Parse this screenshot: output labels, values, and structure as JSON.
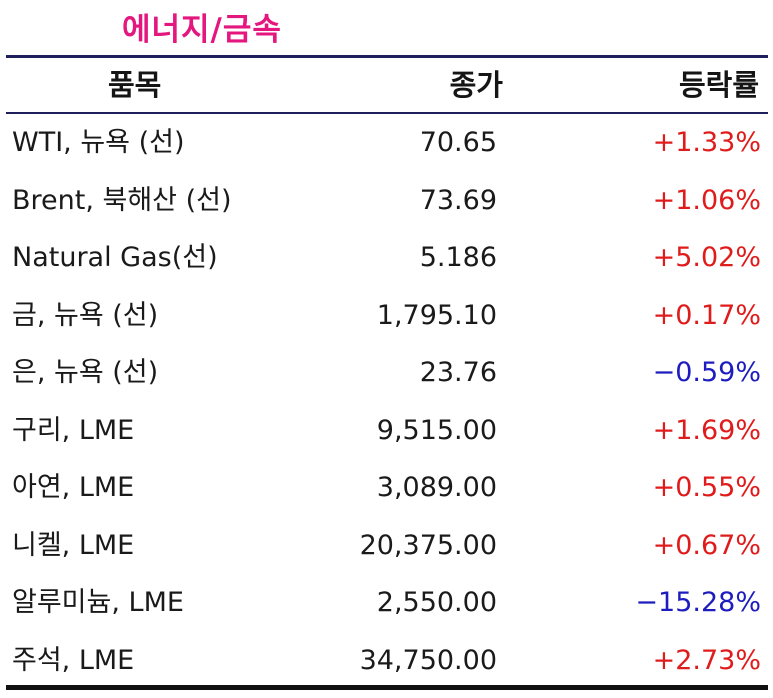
{
  "title": "에너지/금속",
  "header": {
    "name": "품목",
    "price": "종가",
    "change": "등락률"
  },
  "colors": {
    "title": "#e4177f",
    "up": "#e01b1b",
    "down": "#1d1dbf",
    "rule": "#1f1f5e"
  },
  "rows": [
    {
      "name": "WTI, 뉴욕 (선)",
      "price": "70.65",
      "change": "+1.33%",
      "direction": "up"
    },
    {
      "name": "Brent, 북해산 (선)",
      "price": "73.69",
      "change": "+1.06%",
      "direction": "up"
    },
    {
      "name": "Natural Gas(선)",
      "price": "5.186",
      "change": "+5.02%",
      "direction": "up"
    },
    {
      "name": "금, 뉴욕  (선)",
      "price": "1,795.10",
      "change": "+0.17%",
      "direction": "up"
    },
    {
      "name": "은, 뉴욕  (선)",
      "price": "23.76",
      "change": "−0.59%",
      "direction": "down"
    },
    {
      "name": "구리, LME",
      "price": "9,515.00",
      "change": "+1.69%",
      "direction": "up"
    },
    {
      "name": "아연, LME",
      "price": "3,089.00",
      "change": "+0.55%",
      "direction": "up"
    },
    {
      "name": "니켈, LME",
      "price": "20,375.00",
      "change": "+0.67%",
      "direction": "up"
    },
    {
      "name": "알루미늄, LME",
      "price": "2,550.00",
      "change": "−15.28%",
      "direction": "down"
    },
    {
      "name": "주석, LME",
      "price": "34,750.00",
      "change": "+2.73%",
      "direction": "up"
    }
  ]
}
